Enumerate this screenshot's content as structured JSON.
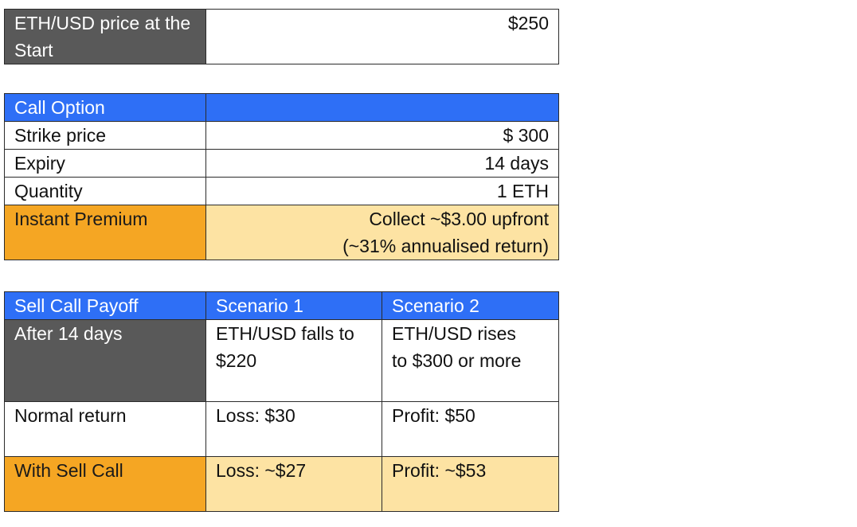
{
  "start": {
    "label": "ETH/USD price at the Start",
    "value": "$250"
  },
  "call_option": {
    "header": "Call Option",
    "rows": [
      {
        "label": "Strike price",
        "value": "$ 300"
      },
      {
        "label": "Expiry",
        "value": "14 days"
      },
      {
        "label": "Quantity",
        "value": "1 ETH"
      }
    ],
    "premium": {
      "label": "Instant Premium",
      "line1": "Collect ~$3.00 upfront",
      "line2": "(~31% annualised return)"
    }
  },
  "payoff": {
    "headers": [
      "Sell Call Payoff",
      "Scenario 1",
      "Scenario 2"
    ],
    "after": {
      "label": "After 14 days",
      "s1_line1": "ETH/USD falls to",
      "s1_line2": "$220",
      "s2_line1": "ETH/USD rises",
      "s2_line2": "to $300 or more"
    },
    "normal": {
      "label": "Normal return",
      "s1": "Loss: $30",
      "s2": "Profit: $50"
    },
    "with_call": {
      "label": "With Sell Call",
      "s1": "Loss: ~$27",
      "s2": "Profit: ~$53"
    }
  },
  "colors": {
    "header_blue": "#2e6ff6",
    "dark_gray": "#595959",
    "orange": "#f5a623",
    "cream": "#fde3a3"
  }
}
